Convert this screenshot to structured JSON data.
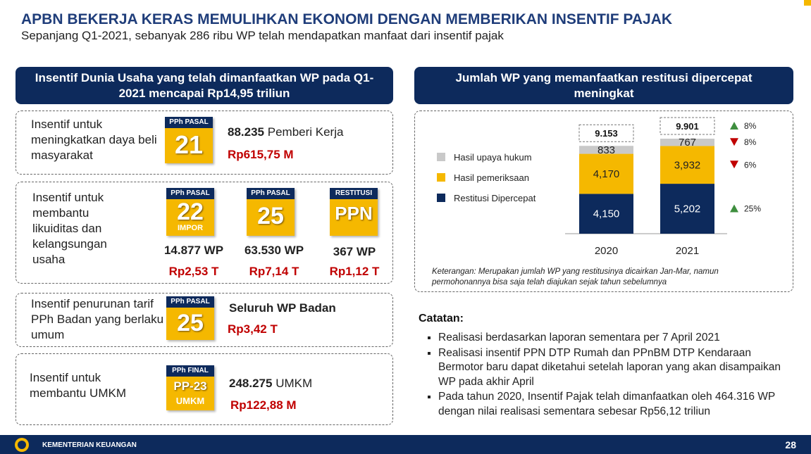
{
  "header": {
    "title": "APBN BEKERJA KERAS MEMULIHKAN EKONOMI DENGAN MEMBERIKAN INSENTIF PAJAK",
    "subtitle": "Sepanjang Q1-2021, sebanyak 286 ribu WP telah mendapatkan manfaat dari insentif pajak"
  },
  "left": {
    "heading": "Insentif Dunia Usaha yang telah dimanfaatkan WP pada Q1-2021 mencapai Rp14,95 triliun",
    "groups": [
      {
        "label": "Insentif untuk meningkatkan daya beli masyarakat",
        "items": [
          {
            "badge_top": "PPh PASAL",
            "badge_main": "21",
            "count": "88.235",
            "unit": "Pemberi Kerja",
            "amount": "Rp615,75 M"
          }
        ]
      },
      {
        "label": "Insentif untuk membantu likuiditas dan kelangsungan usaha",
        "items": [
          {
            "badge_top": "PPh PASAL",
            "badge_main": "22",
            "badge_sub": "IMPOR",
            "count": "14.877 WP",
            "amount": "Rp2,53 T"
          },
          {
            "badge_top": "PPh PASAL",
            "badge_main": "25",
            "count": "63.530 WP",
            "amount": "Rp7,14 T"
          },
          {
            "badge_top": "RESTITUSI",
            "badge_main": "PPN",
            "count": "367 WP",
            "amount": "Rp1,12 T"
          }
        ]
      },
      {
        "label": "Insentif penurunan tarif PPh Badan  yang berlaku umum",
        "items": [
          {
            "badge_top": "PPh PASAL",
            "badge_main": "25",
            "count": "Seluruh WP Badan",
            "amount": "Rp3,42 T"
          }
        ]
      },
      {
        "label": "Insentif untuk membantu UMKM",
        "items": [
          {
            "badge_top": "PPh FINAL",
            "badge_main": "PP-23",
            "badge_sub": "UMKM",
            "count": "248.275",
            "unit": "UMKM",
            "amount": "Rp122,88 M"
          }
        ]
      }
    ]
  },
  "chart_data": {
    "type": "stacked_bar",
    "title": "Jumlah WP yang memanfaatkan restitusi dipercepat meningkat",
    "categories": [
      "2020",
      "2021"
    ],
    "series": [
      {
        "name": "Restitusi Dipercepat",
        "color": "#0d2a5c",
        "values": [
          4150,
          5202
        ],
        "value_labels": [
          "4,150",
          "5,202"
        ]
      },
      {
        "name": "Hasil pemeriksaan",
        "color": "#f5b800",
        "values": [
          4170,
          3932
        ],
        "value_labels": [
          "4,170",
          "3,932"
        ]
      },
      {
        "name": "Hasil upaya hukum",
        "color": "#c9c9c9",
        "values": [
          833,
          767
        ],
        "value_labels": [
          "833",
          "767"
        ]
      }
    ],
    "totals": {
      "values": [
        9153,
        9901
      ],
      "value_labels": [
        "9.153",
        "9.901"
      ]
    },
    "changes": {
      "values": [
        8,
        -8,
        -6,
        25
      ],
      "value_labels": [
        "8%",
        "8%",
        "6%",
        "25%"
      ]
    },
    "note": "Keterangan: Merupakan jumlah WP yang restitusinya dicairkan Jan-Mar, namun permohonannya bisa saja telah diajukan sejak tahun sebelumnya"
  },
  "notes": {
    "title": "Catatan:",
    "items": [
      "Realisasi berdasarkan laporan sementara per 7 April 2021",
      "Realisasi insentif PPN DTP Rumah dan PPnBM DTP Kendaraan Bermotor baru dapat diketahui setelah laporan yang akan disampaikan WP pada akhir April",
      "Pada tahun 2020, Insentif Pajak telah dimanfaatkan oleh 464.316 WP dengan nilai realisasi sementara sebesar Rp56,12 triliun"
    ]
  },
  "footer": {
    "org": "KEMENTERIAN KEUANGAN",
    "page": "28"
  }
}
